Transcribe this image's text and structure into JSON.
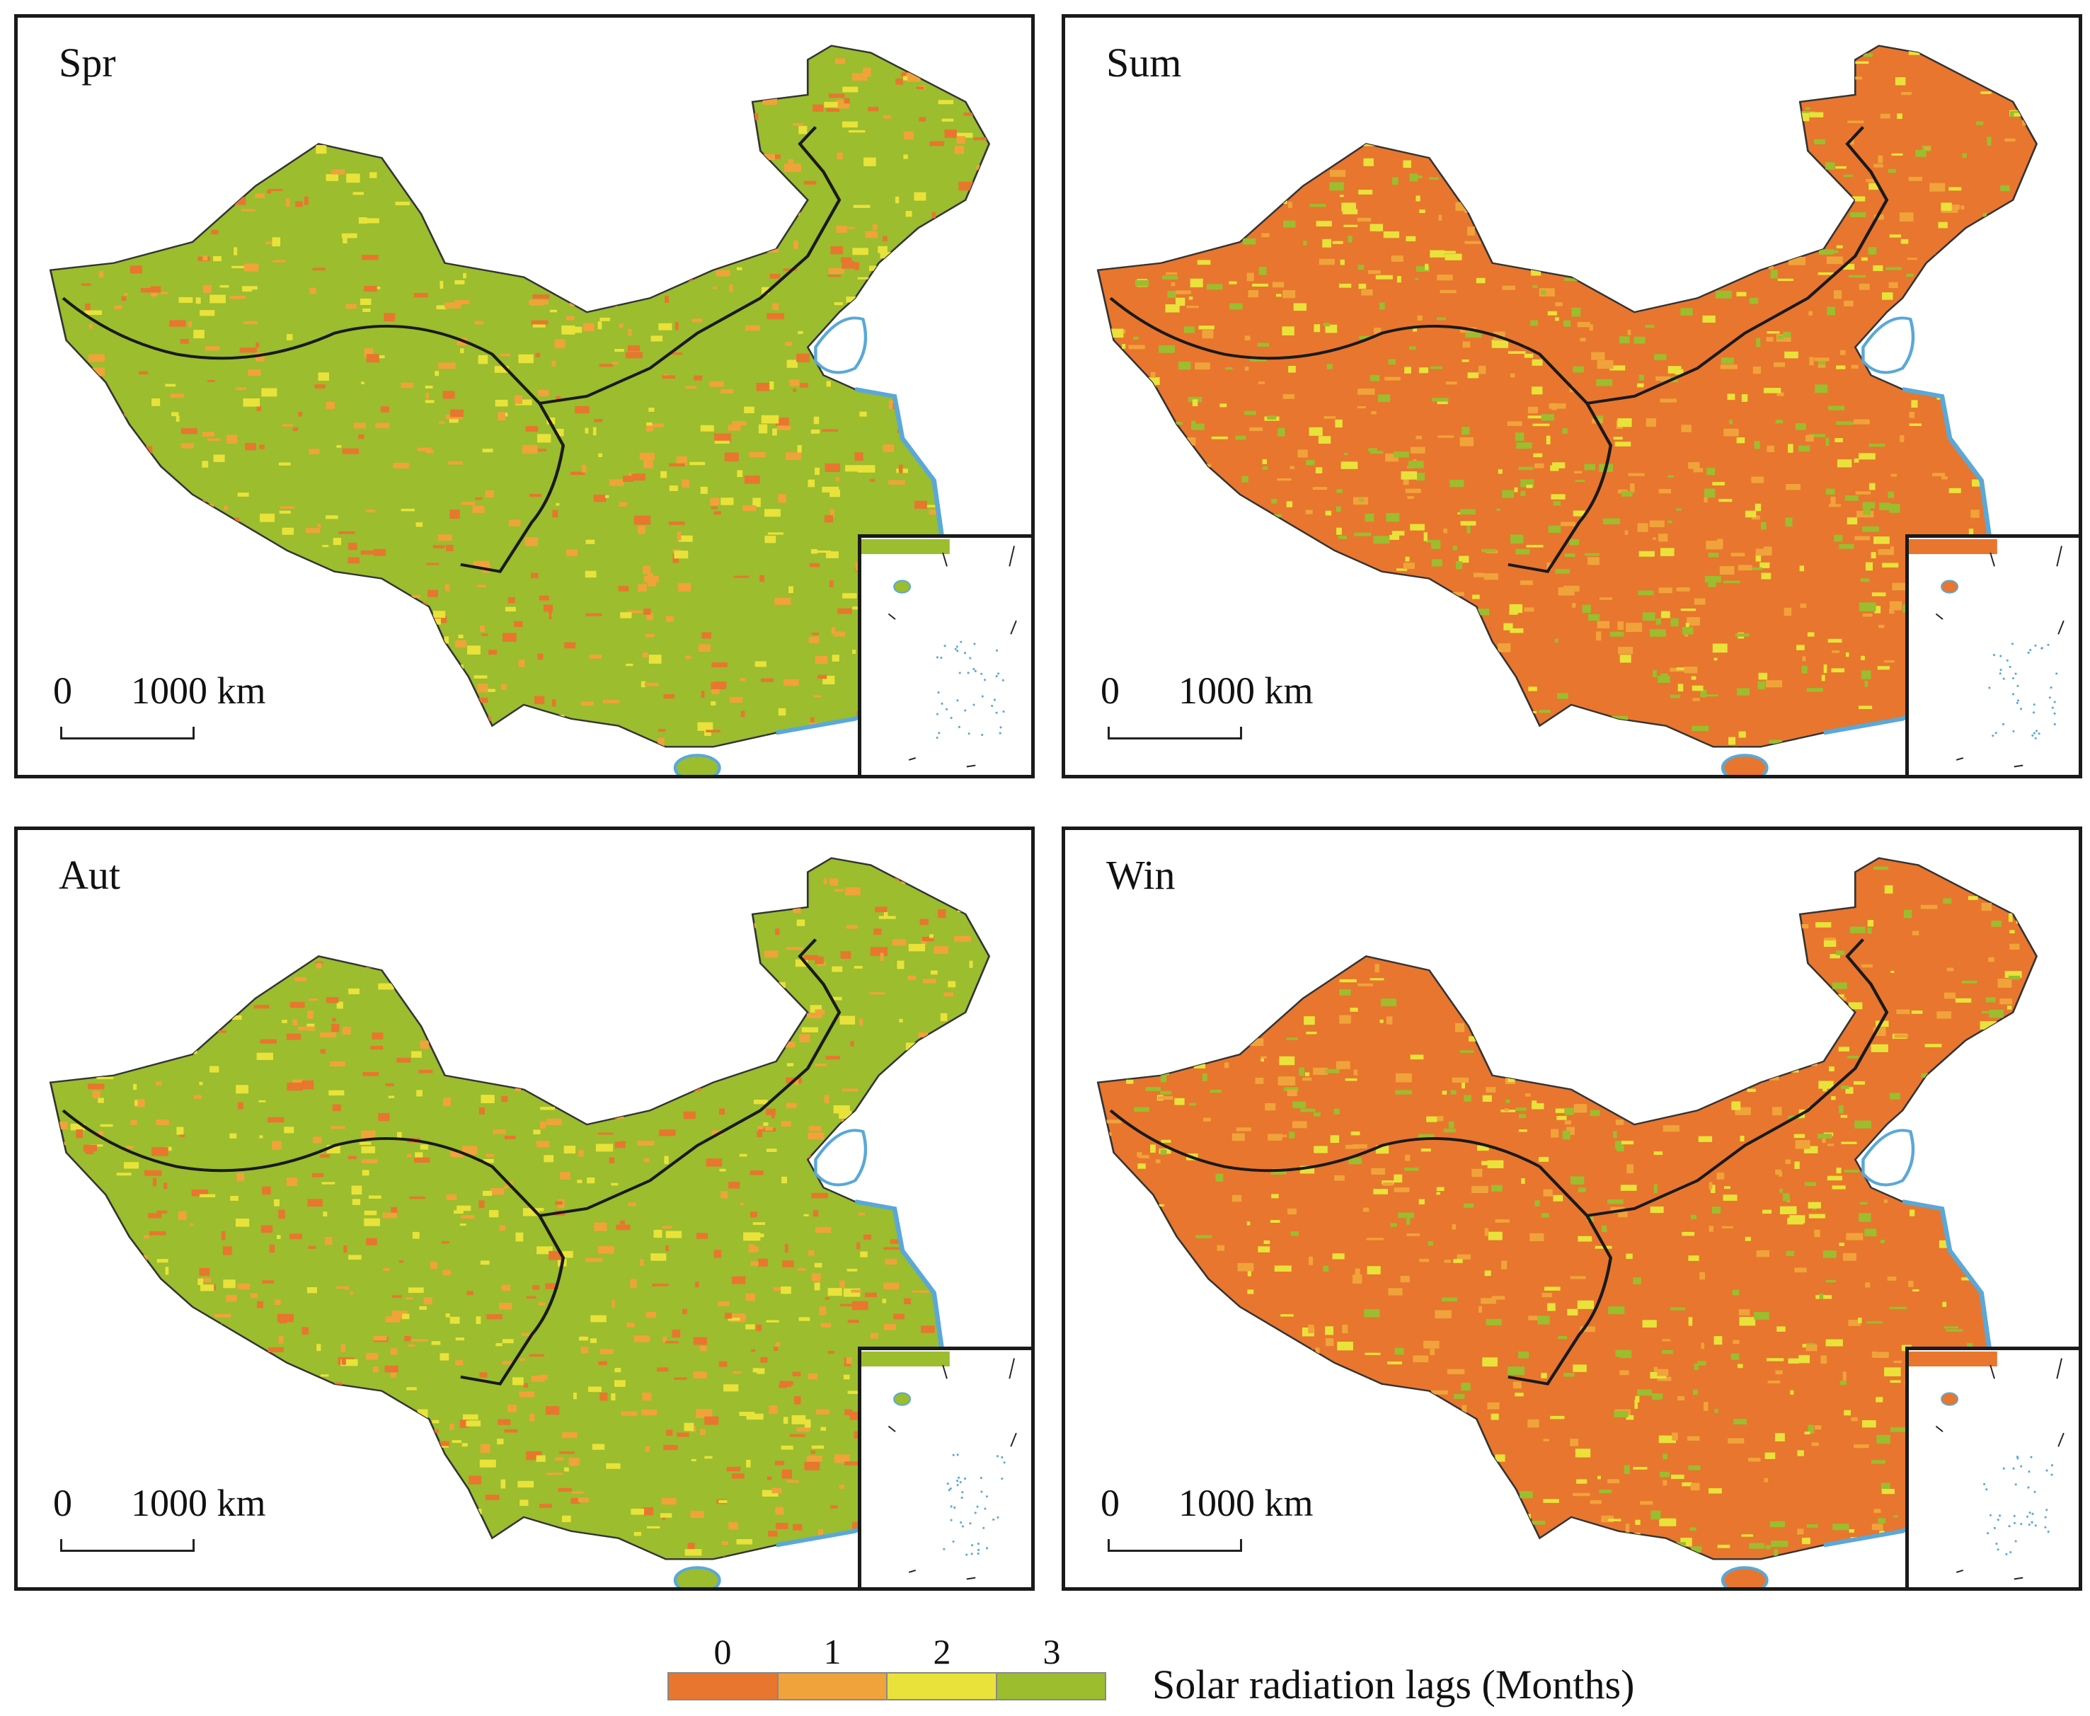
{
  "panels": [
    {
      "id": "spr",
      "label": "Spr",
      "base": "#9bbd2e",
      "speckle": [
        "#e8762e",
        "#f0a33a",
        "#e9e23a"
      ],
      "density": 0.38
    },
    {
      "id": "sum",
      "label": "Sum",
      "base": "#e8762e",
      "speckle": [
        "#f0a33a",
        "#e9e23a",
        "#9bbd2e"
      ],
      "density": 0.45
    },
    {
      "id": "aut",
      "label": "Aut",
      "base": "#9bbd2e",
      "speckle": [
        "#e8762e",
        "#f0a33a",
        "#e9e23a"
      ],
      "density": 0.42
    },
    {
      "id": "win",
      "label": "Win",
      "base": "#e8762e",
      "speckle": [
        "#f0a33a",
        "#e9e23a",
        "#9bbd2e"
      ],
      "density": 0.4
    }
  ],
  "scale_bar": {
    "start": "0",
    "distance": "1000 km"
  },
  "legend": {
    "title": "Solar radiation lags (Months)",
    "ticks": [
      "0",
      "1",
      "2",
      "3"
    ],
    "colors": [
      "#e8762e",
      "#f0a33a",
      "#e9e23a",
      "#9bbd2e"
    ]
  },
  "colors": {
    "water": "#5aa8d8",
    "border_line": "#1a1a1a"
  }
}
